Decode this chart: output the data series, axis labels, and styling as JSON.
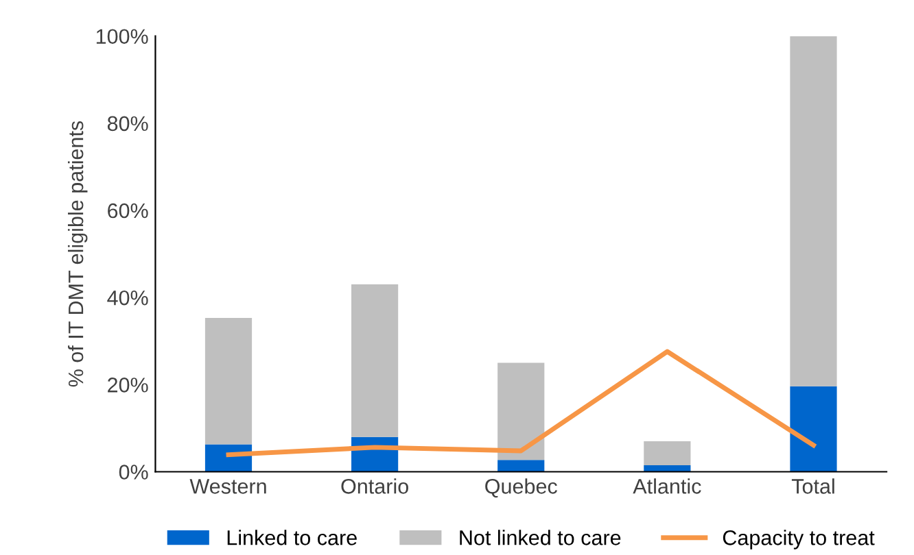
{
  "chart_data": {
    "type": "bar",
    "stacked": true,
    "ylabel": "% of IT DMT eligible patients",
    "categories": [
      "Western",
      "Ontario",
      "Quebec",
      "Atlantic",
      "Total"
    ],
    "series": [
      {
        "name": "Linked to care",
        "color": "#0066cc",
        "values": [
          6.3,
          8,
          2.7,
          1.5,
          19.6
        ]
      },
      {
        "name": "Not linked to care",
        "color": "#bfbfbf",
        "values": [
          29,
          35,
          22.3,
          5.5,
          80.4
        ]
      },
      {
        "name": "Capacity to treat",
        "type": "line",
        "color": "#f79646",
        "values": [
          3.9,
          5.6,
          4.8,
          27.6,
          6.1
        ]
      }
    ],
    "ylim": [
      0,
      100
    ],
    "yticks": [
      {
        "value": 0,
        "label": "0%"
      },
      {
        "value": 20,
        "label": "20%"
      },
      {
        "value": 40,
        "label": "40%"
      },
      {
        "value": 60,
        "label": "60%"
      },
      {
        "value": 80,
        "label": "80%"
      },
      {
        "value": 100,
        "label": "100%"
      }
    ],
    "grid": false,
    "legend": "bottom"
  }
}
